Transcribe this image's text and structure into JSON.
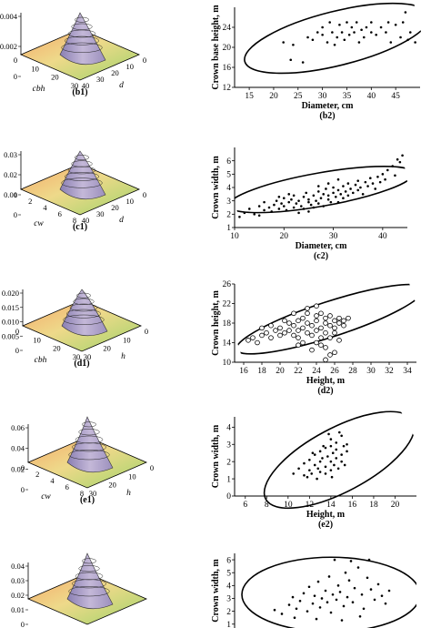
{
  "figure": {
    "surface_panels": [
      {
        "id": "b1",
        "label": "(b1)",
        "z_ticks": [
          "0.004",
          "0.002",
          "0"
        ],
        "x_axis": "cbh",
        "y_axis": "d",
        "x_ticks": [
          "0",
          "10",
          "20",
          "30"
        ],
        "y_ticks": [
          "0",
          "10",
          "20",
          "30",
          "40"
        ],
        "peak": 0.0048,
        "zmax": 0.0048
      },
      {
        "id": "c1",
        "label": "(c1)",
        "z_ticks": [
          "0.03",
          "0.02",
          "0.01",
          "0"
        ],
        "x_axis": "cw",
        "y_axis": "d",
        "x_ticks": [
          "0",
          "2",
          "4",
          "6",
          "8"
        ],
        "y_ticks": [
          "0",
          "10",
          "20",
          "30",
          "40"
        ],
        "peak": 0.031,
        "zmax": 0.031
      },
      {
        "id": "d1",
        "label": "(d1)",
        "z_ticks": [
          "0.020",
          "0.015",
          "0.010",
          "0.005",
          "0"
        ],
        "x_axis": "cbh",
        "y_axis": "h",
        "x_ticks": [
          "0",
          "10",
          "20",
          "30"
        ],
        "y_ticks": [
          "0",
          "10",
          "20",
          "30"
        ],
        "peak": 0.021,
        "zmax": 0.021
      },
      {
        "id": "e1",
        "label": "(e1)",
        "z_ticks": [
          "0.06",
          "0.04",
          "0.02",
          "0"
        ],
        "x_axis": "cw",
        "y_axis": "h",
        "x_ticks": [
          "0",
          "2",
          "4",
          "6",
          "8"
        ],
        "y_ticks": [
          "0",
          "10",
          "20",
          "30"
        ],
        "peak": 0.063,
        "zmax": 0.063
      },
      {
        "id": "f1",
        "label": "",
        "z_ticks": [
          "0.04",
          "0.03",
          "0.02",
          "0.01",
          "0"
        ],
        "x_axis": "",
        "y_axis": "",
        "x_ticks": [],
        "y_ticks": [],
        "peak": 0.042,
        "zmax": 0.042
      }
    ]
  },
  "chart_data": [
    {
      "id": "b2",
      "type": "scatter",
      "label": "(b2)",
      "xlabel": "Diameter, cm",
      "ylabel": "Crown base height, m",
      "xlim": [
        12,
        50
      ],
      "ylim": [
        12,
        28
      ],
      "xticks": [
        15,
        20,
        25,
        30,
        35,
        40,
        45
      ],
      "yticks": [
        12,
        16,
        20,
        24
      ],
      "marker": "dot",
      "grid": false,
      "points": [
        [
          22,
          21
        ],
        [
          23.5,
          17.5
        ],
        [
          24,
          20.5
        ],
        [
          26,
          17
        ],
        [
          27,
          22
        ],
        [
          28,
          21.5
        ],
        [
          29,
          23
        ],
        [
          30,
          22.5
        ],
        [
          30,
          24
        ],
        [
          31,
          21
        ],
        [
          31.5,
          25
        ],
        [
          32,
          23
        ],
        [
          32.5,
          20.5
        ],
        [
          33,
          22
        ],
        [
          33.5,
          24.5
        ],
        [
          34,
          23
        ],
        [
          34.5,
          21.5
        ],
        [
          35,
          25
        ],
        [
          35.5,
          22.5
        ],
        [
          36,
          24
        ],
        [
          36.5,
          23
        ],
        [
          37,
          25
        ],
        [
          37.5,
          21
        ],
        [
          38,
          23.5
        ],
        [
          38.5,
          22
        ],
        [
          39,
          24
        ],
        [
          40,
          23
        ],
        [
          40,
          25
        ],
        [
          41,
          22.5
        ],
        [
          42,
          24
        ],
        [
          43,
          23
        ],
        [
          43.5,
          25
        ],
        [
          44,
          21
        ],
        [
          45,
          24.5
        ],
        [
          46,
          22
        ],
        [
          46.5,
          25
        ],
        [
          47,
          27
        ],
        [
          47.5,
          21.5
        ],
        [
          48,
          23
        ],
        [
          49,
          21
        ]
      ],
      "ellipse": {
        "cx": 33,
        "cy": 21.8,
        "rx": 19.5,
        "ry": 5.4,
        "angle": 14
      }
    },
    {
      "id": "c2",
      "type": "scatter",
      "label": "(c2)",
      "xlabel": "Diameter, cm",
      "ylabel": "Crown width, m",
      "xlim": [
        10,
        45
      ],
      "ylim": [
        1,
        7
      ],
      "xticks": [
        10,
        20,
        30,
        40
      ],
      "yticks": [
        1,
        2,
        3,
        4,
        5,
        6
      ],
      "marker": "dot",
      "grid": false,
      "points": [
        [
          11,
          1.8
        ],
        [
          12,
          2.1
        ],
        [
          13,
          2.4
        ],
        [
          14,
          2.0
        ],
        [
          15,
          2.6
        ],
        [
          16,
          2.3
        ],
        [
          16,
          2.9
        ],
        [
          17,
          2.5
        ],
        [
          17.5,
          2.2
        ],
        [
          18,
          2.7
        ],
        [
          18.5,
          3.0
        ],
        [
          19,
          2.4
        ],
        [
          19.5,
          2.8
        ],
        [
          20,
          2.6
        ],
        [
          20,
          3.2
        ],
        [
          20.5,
          2.3
        ],
        [
          21,
          2.9
        ],
        [
          21.5,
          3.1
        ],
        [
          22,
          2.5
        ],
        [
          22,
          3.4
        ],
        [
          22.5,
          2.8
        ],
        [
          23,
          3.0
        ],
        [
          23.5,
          2.6
        ],
        [
          24,
          3.3
        ],
        [
          24,
          2.4
        ],
        [
          24.5,
          3.6
        ],
        [
          25,
          2.9
        ],
        [
          25,
          3.1
        ],
        [
          25.5,
          2.7
        ],
        [
          26,
          3.4
        ],
        [
          26,
          2.5
        ],
        [
          26.5,
          3.0
        ],
        [
          27,
          3.7
        ],
        [
          27,
          2.8
        ],
        [
          27.5,
          3.2
        ],
        [
          28,
          3.5
        ],
        [
          28,
          2.6
        ],
        [
          28.5,
          3.9
        ],
        [
          29,
          3.1
        ],
        [
          29,
          3.4
        ],
        [
          29.5,
          2.9
        ],
        [
          30,
          3.6
        ],
        [
          30,
          4.0
        ],
        [
          30.5,
          3.3
        ],
        [
          31,
          3.8
        ],
        [
          31,
          2.9
        ],
        [
          31.5,
          3.5
        ],
        [
          32,
          4.1
        ],
        [
          32,
          3.2
        ],
        [
          32.5,
          3.7
        ],
        [
          33,
          3.4
        ],
        [
          33,
          4.3
        ],
        [
          33.5,
          3.9
        ],
        [
          34,
          3.6
        ],
        [
          34.5,
          4.2
        ],
        [
          35,
          3.8
        ],
        [
          35,
          4.5
        ],
        [
          35.5,
          4.0
        ],
        [
          36,
          3.5
        ],
        [
          36.5,
          4.4
        ],
        [
          37,
          4.1
        ],
        [
          37.5,
          4.7
        ],
        [
          38,
          4.3
        ],
        [
          38.5,
          3.9
        ],
        [
          39,
          4.8
        ],
        [
          39.5,
          4.4
        ],
        [
          40,
          5.0
        ],
        [
          40.5,
          4.6
        ],
        [
          41,
          5.3
        ],
        [
          42,
          5.6
        ],
        [
          42.5,
          4.9
        ],
        [
          43,
          6.1
        ],
        [
          44,
          6.4
        ],
        [
          43.5,
          5.9
        ],
        [
          23,
          2.1
        ],
        [
          25,
          2.2
        ],
        [
          21,
          3.5
        ],
        [
          27,
          4.1
        ],
        [
          29,
          4.3
        ],
        [
          31,
          4.6
        ],
        [
          19,
          3.3
        ],
        [
          15,
          1.9
        ]
      ],
      "ellipse": {
        "cx": 27.5,
        "cy": 3.85,
        "rx": 19,
        "ry": 1.25,
        "angle": 10
      }
    },
    {
      "id": "d2",
      "type": "scatter",
      "label": "(d2)",
      "xlabel": "Height, m",
      "ylabel": "Crown height, m",
      "xlim": [
        15,
        35
      ],
      "ylim": [
        10,
        26
      ],
      "xticks": [
        16,
        18,
        20,
        22,
        24,
        26,
        28,
        30,
        32,
        34
      ],
      "yticks": [
        10,
        14,
        18,
        22,
        26
      ],
      "marker": "circle",
      "grid": false,
      "points": [
        [
          16.5,
          14.5
        ],
        [
          17,
          15
        ],
        [
          17.5,
          14
        ],
        [
          18,
          15.5
        ],
        [
          18.5,
          16
        ],
        [
          19,
          15
        ],
        [
          19.5,
          16.5
        ],
        [
          20,
          15.5
        ],
        [
          20,
          17
        ],
        [
          20.5,
          16
        ],
        [
          21,
          16.5
        ],
        [
          21,
          18
        ],
        [
          21.5,
          15.5
        ],
        [
          21.5,
          17.5
        ],
        [
          22,
          16.5
        ],
        [
          22,
          18.5
        ],
        [
          22,
          15
        ],
        [
          22.5,
          17
        ],
        [
          22.5,
          19
        ],
        [
          23,
          16
        ],
        [
          23,
          18
        ],
        [
          23,
          20
        ],
        [
          23.5,
          17.5
        ],
        [
          23.5,
          15.5
        ],
        [
          24,
          16.5
        ],
        [
          24,
          18.5
        ],
        [
          24,
          19.5
        ],
        [
          24,
          14
        ],
        [
          24.5,
          17
        ],
        [
          24.5,
          20
        ],
        [
          24.5,
          15
        ],
        [
          25,
          16
        ],
        [
          25,
          18
        ],
        [
          25,
          19
        ],
        [
          25,
          13
        ],
        [
          25.5,
          17.5
        ],
        [
          25.5,
          19.5
        ],
        [
          25.5,
          15
        ],
        [
          26,
          17
        ],
        [
          26,
          18.5
        ],
        [
          26,
          16
        ],
        [
          26,
          12
        ],
        [
          26.5,
          18
        ],
        [
          26.5,
          19
        ],
        [
          26.5,
          14.5
        ],
        [
          27,
          17.5
        ],
        [
          27,
          18.5
        ],
        [
          27.5,
          19
        ],
        [
          21.5,
          20
        ],
        [
          23,
          21
        ],
        [
          24,
          21.5
        ],
        [
          25,
          10.5
        ],
        [
          22.5,
          14
        ],
        [
          20.5,
          18.5
        ],
        [
          19,
          17.5
        ],
        [
          18,
          17
        ],
        [
          24.5,
          13.5
        ],
        [
          23.5,
          12.5
        ],
        [
          25.5,
          11.5
        ],
        [
          22,
          13.5
        ]
      ],
      "ellipse": {
        "cx": 25.5,
        "cy": 18.8,
        "rx": 10.8,
        "ry": 3.6,
        "angle": 18
      }
    },
    {
      "id": "e2",
      "type": "scatter",
      "label": "(e2)",
      "xlabel": "Height, m",
      "ylabel": "Crown width, m",
      "xlim": [
        5,
        22
      ],
      "ylim": [
        0,
        4.6
      ],
      "xticks": [
        6,
        8,
        10,
        12,
        14,
        16,
        18,
        20
      ],
      "yticks": [
        0,
        1,
        2,
        3,
        4
      ],
      "marker": "dot",
      "grid": false,
      "points": [
        [
          10.5,
          1.3
        ],
        [
          11,
          1.6
        ],
        [
          11.5,
          1.2
        ],
        [
          11.5,
          1.9
        ],
        [
          12,
          1.5
        ],
        [
          12,
          2.1
        ],
        [
          12.2,
          1.3
        ],
        [
          12.5,
          1.8
        ],
        [
          12.5,
          2.4
        ],
        [
          12.8,
          1.6
        ],
        [
          13,
          2.0
        ],
        [
          13,
          1.4
        ],
        [
          13,
          2.6
        ],
        [
          13.2,
          2.2
        ],
        [
          13.5,
          1.7
        ],
        [
          13.5,
          2.8
        ],
        [
          13.5,
          1.3
        ],
        [
          13.7,
          2.3
        ],
        [
          14,
          2.0
        ],
        [
          14,
          2.9
        ],
        [
          14,
          1.5
        ],
        [
          14,
          3.3
        ],
        [
          14.2,
          2.5
        ],
        [
          14.3,
          1.8
        ],
        [
          14.5,
          2.2
        ],
        [
          14.5,
          3.1
        ],
        [
          14.5,
          2.7
        ],
        [
          14.7,
          1.6
        ],
        [
          15,
          2.4
        ],
        [
          15,
          3.5
        ],
        [
          15,
          2.0
        ],
        [
          15.2,
          2.9
        ],
        [
          15.5,
          2.6
        ],
        [
          15.5,
          3.0
        ],
        [
          11.8,
          1.1
        ],
        [
          12.7,
          1.0
        ],
        [
          13.8,
          3.6
        ],
        [
          14.8,
          3.7
        ],
        [
          13.3,
          2.9
        ],
        [
          12.3,
          2.5
        ],
        [
          15.3,
          1.8
        ],
        [
          14.1,
          1.1
        ]
      ],
      "ellipse": {
        "cx": 14.8,
        "cy": 2.1,
        "rx": 7.8,
        "ry": 1.85,
        "angle": 28
      }
    },
    {
      "id": "f2",
      "type": "scatter",
      "label": "",
      "xlabel": "",
      "ylabel": "Crown width, m",
      "xlim": [
        0,
        10
      ],
      "ylim": [
        0.7,
        6.5
      ],
      "xticks": [],
      "yticks": [
        1,
        2,
        3,
        4,
        5,
        6
      ],
      "marker": "dot",
      "grid": false,
      "points": [
        [
          2.2,
          2.1
        ],
        [
          2.6,
          1.8
        ],
        [
          3.0,
          2.5
        ],
        [
          3.2,
          3.1
        ],
        [
          3.4,
          2.2
        ],
        [
          3.6,
          2.8
        ],
        [
          3.8,
          3.4
        ],
        [
          4.0,
          2.0
        ],
        [
          4.1,
          3.9
        ],
        [
          4.3,
          2.6
        ],
        [
          4.4,
          3.2
        ],
        [
          4.6,
          4.3
        ],
        [
          4.7,
          2.3
        ],
        [
          4.8,
          3.0
        ],
        [
          5.0,
          3.6
        ],
        [
          5.1,
          2.7
        ],
        [
          5.2,
          4.7
        ],
        [
          5.3,
          1.9
        ],
        [
          5.4,
          3.3
        ],
        [
          5.6,
          2.9
        ],
        [
          5.7,
          4.0
        ],
        [
          5.8,
          3.5
        ],
        [
          6.0,
          2.4
        ],
        [
          6.1,
          5.0
        ],
        [
          6.2,
          3.1
        ],
        [
          6.3,
          4.4
        ],
        [
          6.5,
          2.7
        ],
        [
          6.6,
          3.8
        ],
        [
          6.8,
          5.4
        ],
        [
          7.0,
          3.3
        ],
        [
          7.1,
          2.2
        ],
        [
          7.3,
          4.6
        ],
        [
          7.5,
          3.7
        ],
        [
          7.7,
          2.9
        ],
        [
          7.9,
          4.1
        ],
        [
          8.1,
          3.2
        ],
        [
          8.3,
          2.6
        ],
        [
          8.5,
          3.6
        ],
        [
          5.5,
          6.0
        ],
        [
          6.4,
          5.9
        ],
        [
          7.4,
          6.0
        ],
        [
          3.3,
          1.5
        ],
        [
          4.5,
          1.4
        ],
        [
          6.9,
          1.6
        ],
        [
          5.9,
          1.3
        ]
      ],
      "ellipse": {
        "cx": 5.3,
        "cy": 3.3,
        "rx": 4.9,
        "ry": 2.9,
        "angle": 0
      }
    }
  ]
}
